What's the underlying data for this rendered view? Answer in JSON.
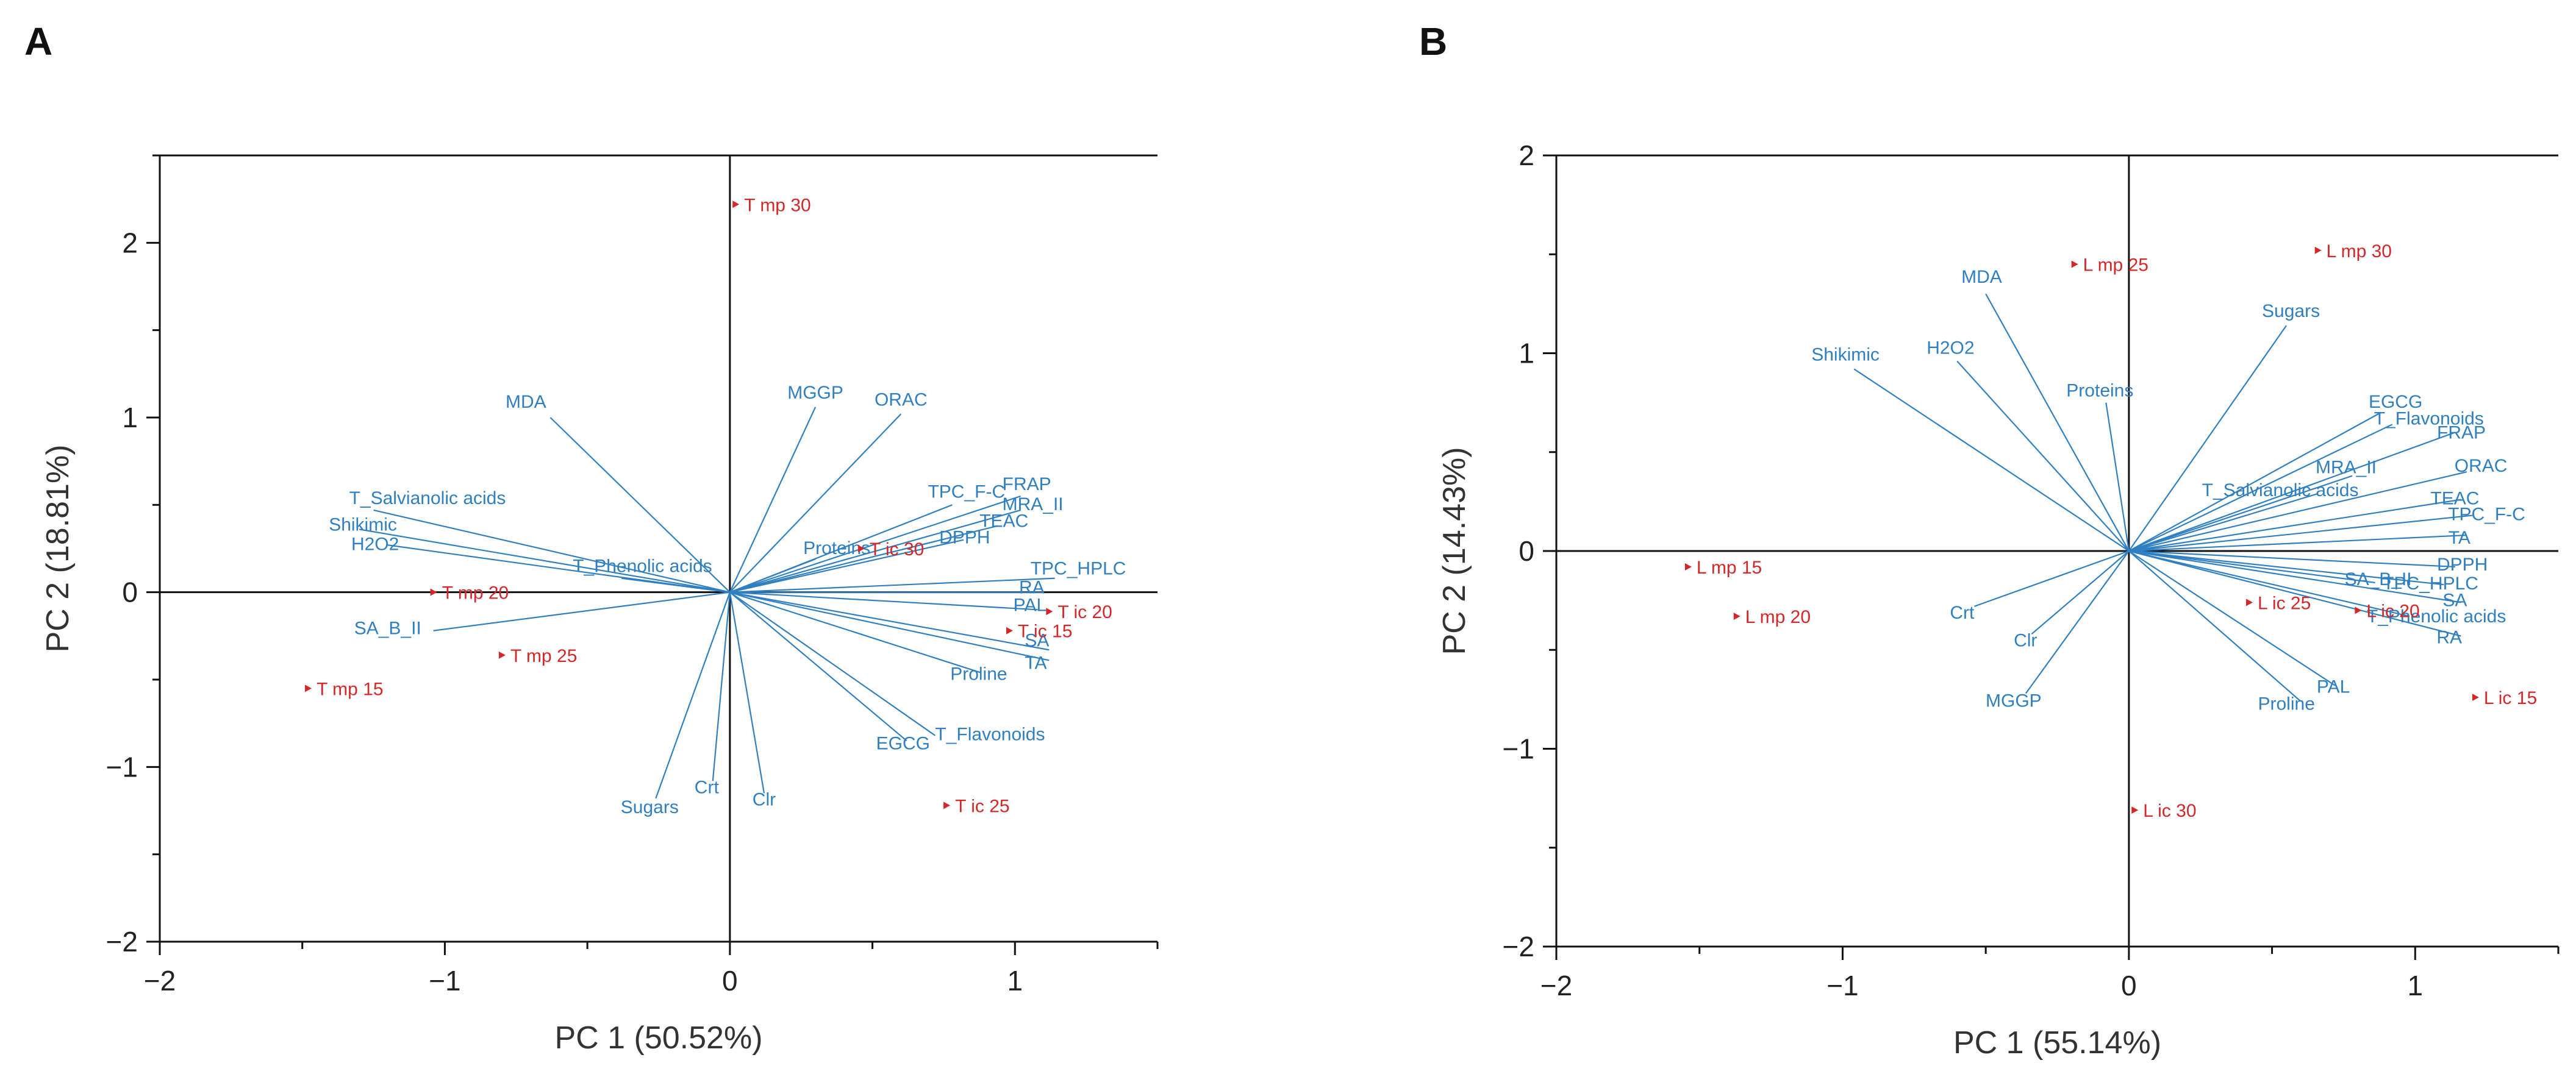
{
  "colors": {
    "variable": "#2f7fc1",
    "observation": "#d62728",
    "axis": "#111111"
  },
  "chart_data": [
    {
      "panel": "A",
      "type": "scatter",
      "subtype": "pca-biplot",
      "xlabel": "PC 1 (50.52%)",
      "ylabel": "PC 2 (18.81%)",
      "xlim": [
        -2,
        1.5
      ],
      "ylim": [
        -2,
        2.5
      ],
      "xticks": [
        -2,
        -1,
        0,
        1
      ],
      "yticks": [
        -2,
        -1,
        0,
        1,
        2
      ],
      "xtick_labels": [
        "−2",
        "−1",
        "0",
        "1"
      ],
      "ytick_labels": [
        "−2",
        "−1",
        "0",
        "1",
        "2"
      ],
      "grid": false,
      "variables": [
        {
          "name": "MDA",
          "x": -0.63,
          "y": 1.0
        },
        {
          "name": "MGGP",
          "x": 0.3,
          "y": 1.06
        },
        {
          "name": "ORAC",
          "x": 0.6,
          "y": 1.02
        },
        {
          "name": "T_Salvianolic acids",
          "x": -1.25,
          "y": 0.47
        },
        {
          "name": "Shikimic",
          "x": -1.3,
          "y": 0.36
        },
        {
          "name": "H2O2",
          "x": -1.2,
          "y": 0.27
        },
        {
          "name": "T_Phenolic acids",
          "x": -0.38,
          "y": 0.08
        },
        {
          "name": "Proteins",
          "x": 0.3,
          "y": 0.19
        },
        {
          "name": "TPC_F-C",
          "x": 0.78,
          "y": 0.5
        },
        {
          "name": "FRAP",
          "x": 1.02,
          "y": 0.55
        },
        {
          "name": "MRA_II",
          "x": 1.02,
          "y": 0.47
        },
        {
          "name": "TEAC",
          "x": 0.94,
          "y": 0.38
        },
        {
          "name": "DPPH",
          "x": 0.82,
          "y": 0.3
        },
        {
          "name": "TPC_HPLC",
          "x": 1.14,
          "y": 0.08
        },
        {
          "name": "RA",
          "x": 1.1,
          "y": 0.0
        },
        {
          "name": "PAL",
          "x": 1.08,
          "y": -0.1
        },
        {
          "name": "SA",
          "x": 1.12,
          "y": -0.33
        },
        {
          "name": "TA",
          "x": 1.12,
          "y": -0.39
        },
        {
          "name": "Proline",
          "x": 0.88,
          "y": -0.46
        },
        {
          "name": "T_Flavonoids",
          "x": 0.72,
          "y": -0.82
        },
        {
          "name": "EGCG",
          "x": 0.62,
          "y": -0.85
        },
        {
          "name": "Sugars",
          "x": -0.26,
          "y": -1.18
        },
        {
          "name": "Crt",
          "x": -0.06,
          "y": -1.08
        },
        {
          "name": "Clr",
          "x": 0.12,
          "y": -1.15
        },
        {
          "name": "SA_B_II",
          "x": -1.04,
          "y": -0.22
        }
      ],
      "observations": [
        {
          "name": "T mp 30",
          "x": 0.02,
          "y": 2.22
        },
        {
          "name": "T mp 20",
          "x": -1.04,
          "y": 0.0
        },
        {
          "name": "T mp 25",
          "x": -0.8,
          "y": -0.36
        },
        {
          "name": "T mp 15",
          "x": -1.48,
          "y": -0.55
        },
        {
          "name": "T ic 30",
          "x": 0.46,
          "y": 0.25
        },
        {
          "name": "T ic 20",
          "x": 1.12,
          "y": -0.11
        },
        {
          "name": "T ic 15",
          "x": 0.98,
          "y": -0.22
        },
        {
          "name": "T ic 25",
          "x": 0.76,
          "y": -1.22
        }
      ]
    },
    {
      "panel": "B",
      "type": "scatter",
      "subtype": "pca-biplot",
      "xlabel": "PC 1 (55.14%)",
      "ylabel": "PC 2 (14.43%)",
      "xlim": [
        -2,
        1.5
      ],
      "ylim": [
        -2,
        2
      ],
      "xticks": [
        -2,
        -1,
        0,
        1
      ],
      "yticks": [
        -2,
        -1,
        0,
        1,
        2
      ],
      "xtick_labels": [
        "−2",
        "−1",
        "0",
        "1"
      ],
      "ytick_labels": [
        "−2",
        "−1",
        "0",
        "1",
        "2"
      ],
      "grid": false,
      "variables": [
        {
          "name": "MDA",
          "x": -0.5,
          "y": 1.3
        },
        {
          "name": "Shikimic",
          "x": -0.96,
          "y": 0.92
        },
        {
          "name": "H2O2",
          "x": -0.6,
          "y": 0.96
        },
        {
          "name": "Proteins",
          "x": -0.08,
          "y": 0.75
        },
        {
          "name": "Sugars",
          "x": 0.55,
          "y": 1.14
        },
        {
          "name": "EGCG",
          "x": 0.88,
          "y": 0.7
        },
        {
          "name": "T_Flavonoids",
          "x": 0.92,
          "y": 0.64
        },
        {
          "name": "FRAP",
          "x": 1.14,
          "y": 0.6
        },
        {
          "name": "MRA_II",
          "x": 0.78,
          "y": 0.38
        },
        {
          "name": "ORAC",
          "x": 1.18,
          "y": 0.4
        },
        {
          "name": "T_Salvianolic acids",
          "x": 0.66,
          "y": 0.29
        },
        {
          "name": "TEAC",
          "x": 1.16,
          "y": 0.26
        },
        {
          "name": "TPC_F-C",
          "x": 1.2,
          "y": 0.18
        },
        {
          "name": "TA",
          "x": 1.18,
          "y": 0.08
        },
        {
          "name": "DPPH",
          "x": 1.14,
          "y": -0.08
        },
        {
          "name": "SA_B_II",
          "x": 0.86,
          "y": -0.16
        },
        {
          "name": "TPC_HPLC",
          "x": 1.1,
          "y": -0.17
        },
        {
          "name": "SA",
          "x": 1.16,
          "y": -0.26
        },
        {
          "name": "T_Phenolic acids",
          "x": 0.98,
          "y": -0.33
        },
        {
          "name": "RA",
          "x": 1.16,
          "y": -0.43
        },
        {
          "name": "PAL",
          "x": 0.72,
          "y": -0.68
        },
        {
          "name": "Proline",
          "x": 0.6,
          "y": -0.76
        },
        {
          "name": "Crt",
          "x": -0.54,
          "y": -0.28
        },
        {
          "name": "Clr",
          "x": -0.34,
          "y": -0.42
        },
        {
          "name": "MGGP",
          "x": -0.36,
          "y": -0.72
        }
      ],
      "observations": [
        {
          "name": "L mp 25",
          "x": -0.19,
          "y": 1.45
        },
        {
          "name": "L mp 30",
          "x": 0.66,
          "y": 1.52
        },
        {
          "name": "L mp 15",
          "x": -1.54,
          "y": -0.08
        },
        {
          "name": "L mp 20",
          "x": -1.37,
          "y": -0.33
        },
        {
          "name": "L ic 25",
          "x": 0.42,
          "y": -0.26
        },
        {
          "name": "L ic 20",
          "x": 0.8,
          "y": -0.3
        },
        {
          "name": "L ic 15",
          "x": 1.21,
          "y": -0.74
        },
        {
          "name": "L ic 30",
          "x": 0.02,
          "y": -1.31
        }
      ]
    }
  ]
}
